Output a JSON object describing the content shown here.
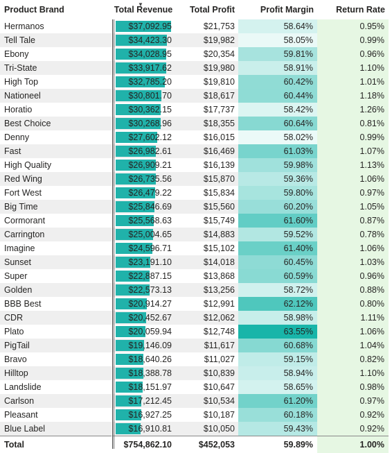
{
  "headers": {
    "brand": "Product Brand",
    "revenue": "Total Revenue",
    "profit": "Total Profit",
    "margin": "Profit Margin",
    "return_rate": "Return Rate",
    "sort_indicator": "▼"
  },
  "colors": {
    "bar": "#20b2aa",
    "return_bg": "#e6f7e3",
    "row_alt": "#efefef"
  },
  "max_revenue": 37092.95,
  "rows": [
    {
      "brand": "Hermanos",
      "revenue": "$37,092.95",
      "revenue_value": 37092.95,
      "profit": "$21,753",
      "margin": "58.64%",
      "margin_value": 58.64,
      "return_rate": "0.95%"
    },
    {
      "brand": "Tell Tale",
      "revenue": "$34,423.30",
      "revenue_value": 34423.3,
      "profit": "$19,982",
      "margin": "58.05%",
      "margin_value": 58.05,
      "return_rate": "0.99%"
    },
    {
      "brand": "Ebony",
      "revenue": "$34,028.95",
      "revenue_value": 34028.95,
      "profit": "$20,354",
      "margin": "59.81%",
      "margin_value": 59.81,
      "return_rate": "0.96%"
    },
    {
      "brand": "Tri-State",
      "revenue": "$33,917.62",
      "revenue_value": 33917.62,
      "profit": "$19,980",
      "margin": "58.91%",
      "margin_value": 58.91,
      "return_rate": "1.10%"
    },
    {
      "brand": "High Top",
      "revenue": "$32,785.20",
      "revenue_value": 32785.2,
      "profit": "$19,810",
      "margin": "60.42%",
      "margin_value": 60.42,
      "return_rate": "1.01%"
    },
    {
      "brand": "Nationeel",
      "revenue": "$30,801.70",
      "revenue_value": 30801.7,
      "profit": "$18,617",
      "margin": "60.44%",
      "margin_value": 60.44,
      "return_rate": "1.18%"
    },
    {
      "brand": "Horatio",
      "revenue": "$30,362.15",
      "revenue_value": 30362.15,
      "profit": "$17,737",
      "margin": "58.42%",
      "margin_value": 58.42,
      "return_rate": "1.26%"
    },
    {
      "brand": "Best Choice",
      "revenue": "$30,268.96",
      "revenue_value": 30268.96,
      "profit": "$18,355",
      "margin": "60.64%",
      "margin_value": 60.64,
      "return_rate": "0.81%"
    },
    {
      "brand": "Denny",
      "revenue": "$27,602.12",
      "revenue_value": 27602.12,
      "profit": "$16,015",
      "margin": "58.02%",
      "margin_value": 58.02,
      "return_rate": "0.99%"
    },
    {
      "brand": "Fast",
      "revenue": "$26,982.61",
      "revenue_value": 26982.61,
      "profit": "$16,469",
      "margin": "61.03%",
      "margin_value": 61.03,
      "return_rate": "1.07%"
    },
    {
      "brand": "High Quality",
      "revenue": "$26,909.21",
      "revenue_value": 26909.21,
      "profit": "$16,139",
      "margin": "59.98%",
      "margin_value": 59.98,
      "return_rate": "1.13%"
    },
    {
      "brand": "Red Wing",
      "revenue": "$26,735.56",
      "revenue_value": 26735.56,
      "profit": "$15,870",
      "margin": "59.36%",
      "margin_value": 59.36,
      "return_rate": "1.06%"
    },
    {
      "brand": "Fort West",
      "revenue": "$26,479.22",
      "revenue_value": 26479.22,
      "profit": "$15,834",
      "margin": "59.80%",
      "margin_value": 59.8,
      "return_rate": "0.97%"
    },
    {
      "brand": "Big Time",
      "revenue": "$25,846.69",
      "revenue_value": 25846.69,
      "profit": "$15,560",
      "margin": "60.20%",
      "margin_value": 60.2,
      "return_rate": "1.05%"
    },
    {
      "brand": "Cormorant",
      "revenue": "$25,568.63",
      "revenue_value": 25568.63,
      "profit": "$15,749",
      "margin": "61.60%",
      "margin_value": 61.6,
      "return_rate": "0.87%"
    },
    {
      "brand": "Carrington",
      "revenue": "$25,004.65",
      "revenue_value": 25004.65,
      "profit": "$14,883",
      "margin": "59.52%",
      "margin_value": 59.52,
      "return_rate": "0.78%"
    },
    {
      "brand": "Imagine",
      "revenue": "$24,596.71",
      "revenue_value": 24596.71,
      "profit": "$15,102",
      "margin": "61.40%",
      "margin_value": 61.4,
      "return_rate": "1.06%"
    },
    {
      "brand": "Sunset",
      "revenue": "$23,191.10",
      "revenue_value": 23191.1,
      "profit": "$14,018",
      "margin": "60.45%",
      "margin_value": 60.45,
      "return_rate": "1.03%"
    },
    {
      "brand": "Super",
      "revenue": "$22,887.15",
      "revenue_value": 22887.15,
      "profit": "$13,868",
      "margin": "60.59%",
      "margin_value": 60.59,
      "return_rate": "0.96%"
    },
    {
      "brand": "Golden",
      "revenue": "$22,573.13",
      "revenue_value": 22573.13,
      "profit": "$13,256",
      "margin": "58.72%",
      "margin_value": 58.72,
      "return_rate": "0.88%"
    },
    {
      "brand": "BBB Best",
      "revenue": "$20,914.27",
      "revenue_value": 20914.27,
      "profit": "$12,991",
      "margin": "62.12%",
      "margin_value": 62.12,
      "return_rate": "0.80%"
    },
    {
      "brand": "CDR",
      "revenue": "$20,452.67",
      "revenue_value": 20452.67,
      "profit": "$12,062",
      "margin": "58.98%",
      "margin_value": 58.98,
      "return_rate": "1.11%"
    },
    {
      "brand": "Plato",
      "revenue": "$20,059.94",
      "revenue_value": 20059.94,
      "profit": "$12,748",
      "margin": "63.55%",
      "margin_value": 63.55,
      "return_rate": "1.06%"
    },
    {
      "brand": "PigTail",
      "revenue": "$19,146.09",
      "revenue_value": 19146.09,
      "profit": "$11,617",
      "margin": "60.68%",
      "margin_value": 60.68,
      "return_rate": "1.04%"
    },
    {
      "brand": "Bravo",
      "revenue": "$18,640.26",
      "revenue_value": 18640.26,
      "profit": "$11,027",
      "margin": "59.15%",
      "margin_value": 59.15,
      "return_rate": "0.82%"
    },
    {
      "brand": "Hilltop",
      "revenue": "$18,388.78",
      "revenue_value": 18388.78,
      "profit": "$10,839",
      "margin": "58.94%",
      "margin_value": 58.94,
      "return_rate": "1.10%"
    },
    {
      "brand": "Landslide",
      "revenue": "$18,151.97",
      "revenue_value": 18151.97,
      "profit": "$10,647",
      "margin": "58.65%",
      "margin_value": 58.65,
      "return_rate": "0.98%"
    },
    {
      "brand": "Carlson",
      "revenue": "$17,212.45",
      "revenue_value": 17212.45,
      "profit": "$10,534",
      "margin": "61.20%",
      "margin_value": 61.2,
      "return_rate": "0.97%"
    },
    {
      "brand": "Pleasant",
      "revenue": "$16,927.25",
      "revenue_value": 16927.25,
      "profit": "$10,187",
      "margin": "60.18%",
      "margin_value": 60.18,
      "return_rate": "0.92%"
    },
    {
      "brand": "Blue Label",
      "revenue": "$16,910.81",
      "revenue_value": 16910.81,
      "profit": "$10,050",
      "margin": "59.43%",
      "margin_value": 59.43,
      "return_rate": "0.92%"
    }
  ],
  "total": {
    "label": "Total",
    "revenue": "$754,862.10",
    "profit": "$452,053",
    "margin": "59.89%",
    "return_rate": "1.00%"
  }
}
